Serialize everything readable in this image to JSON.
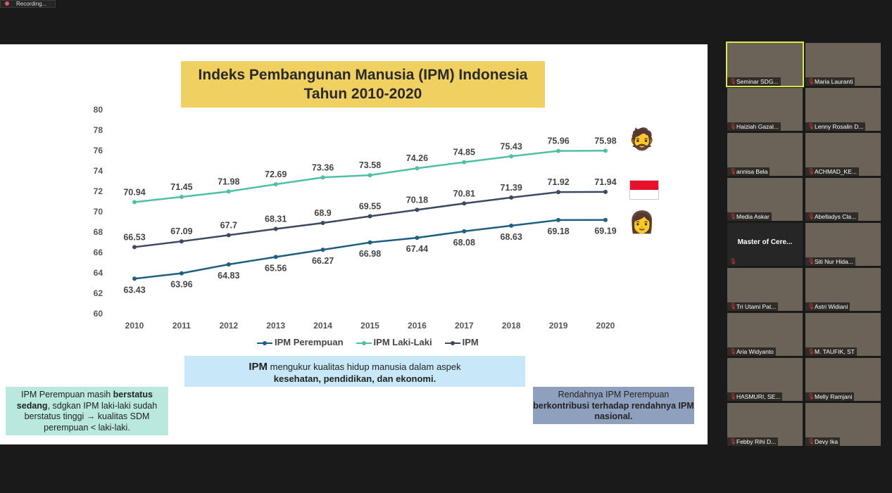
{
  "recording": {
    "label": "Recording..."
  },
  "slide": {
    "title_line1": "Indeks Pembangunan Manusia (IPM) Indonesia",
    "title_line2": "Tahun 2010-2020",
    "ipm_box": {
      "bold1": "IPM",
      "text1": " mengukur kualitas hidup manusia dalam aspek",
      "bold2": "kesehatan, pendidikan, dan ekonomi."
    },
    "left_box": {
      "t1": "IPM Perempuan masih ",
      "b1": "berstatus sedang",
      "t2": ", sdgkan IPM laki-laki sudah berstatus tinggi → kualitas SDM perempuan < laki-laki."
    },
    "right_box": {
      "t1": "Rendahnya IPM Perempuan",
      "b1": "berkontribusi terhadap rendahnya IPM nasional."
    }
  },
  "chart_data": {
    "type": "line",
    "title": "Indeks Pembangunan Manusia (IPM) Indonesia Tahun 2010-2020",
    "x": [
      "2010",
      "2011",
      "2012",
      "2013",
      "2014",
      "2015",
      "2016",
      "2017",
      "2018",
      "2019",
      "2020"
    ],
    "ylim": [
      60,
      80
    ],
    "yticks": [
      60,
      62,
      64,
      66,
      68,
      70,
      72,
      74,
      76,
      78,
      80
    ],
    "legend_position": "bottom",
    "series": [
      {
        "name": "IPM Perempuan",
        "color": "#1f5f82",
        "label_pos": "below",
        "values": [
          63.43,
          63.96,
          64.83,
          65.56,
          66.27,
          66.98,
          67.44,
          68.08,
          68.63,
          69.18,
          69.19
        ]
      },
      {
        "name": "IPM Laki-Laki",
        "color": "#4fbfa6",
        "label_pos": "above",
        "values": [
          70.94,
          71.45,
          71.98,
          72.69,
          73.36,
          73.58,
          74.26,
          74.85,
          75.43,
          75.96,
          75.98
        ]
      },
      {
        "name": "IPM",
        "color": "#3e4861",
        "label_pos": "above",
        "values": [
          66.53,
          67.09,
          67.7,
          68.31,
          68.9,
          69.55,
          70.18,
          70.81,
          71.39,
          71.92,
          71.94
        ]
      }
    ]
  },
  "participants": [
    {
      "name": "Seminar SDG...",
      "active": true
    },
    {
      "name": "Maria Lauranti"
    },
    {
      "name": "Haiziah Gazal..."
    },
    {
      "name": "Lenny Rosalin D..."
    },
    {
      "name": "annisa Bela"
    },
    {
      "name": "ACHMAD_KE..."
    },
    {
      "name": "Media Askar"
    },
    {
      "name": "Abelladys Cla..."
    },
    {
      "name": "",
      "center": "Master of Cere...",
      "dark": true
    },
    {
      "name": "Siti Nur Hida..."
    },
    {
      "name": "Tri Utami Pat..."
    },
    {
      "name": "Astri Widiani"
    },
    {
      "name": "Aria Widyanto"
    },
    {
      "name": "M. TAUFIK, ST"
    },
    {
      "name": "HASMURI, SE..."
    },
    {
      "name": "Melly Ramjani"
    },
    {
      "name": "Febby Rihi D..."
    },
    {
      "name": "Devy Ika"
    }
  ]
}
